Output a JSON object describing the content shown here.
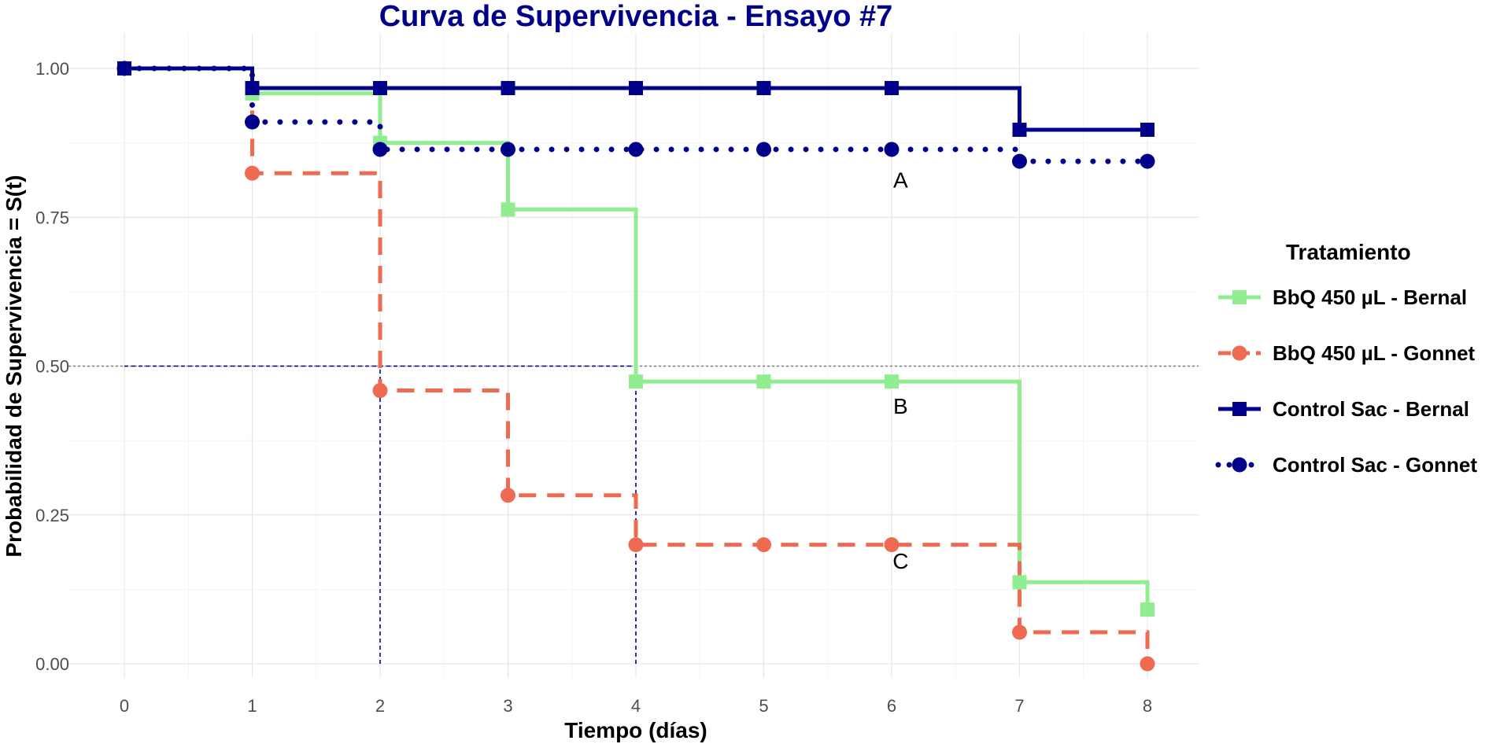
{
  "chart_data": {
    "type": "line",
    "subtype": "kaplan-meier-step",
    "title": "Curva de Supervivencia - Ensayo #7",
    "xlabel": "Tiempo (días)",
    "ylabel": "Probabilidad de Supervivencia = S(t)",
    "xlim": [
      0,
      8
    ],
    "ylim": [
      0,
      1
    ],
    "x_ticks": [
      "0",
      "1",
      "2",
      "3",
      "4",
      "5",
      "6",
      "7",
      "8"
    ],
    "y_ticks": [
      "0.00",
      "0.25",
      "0.50",
      "0.75",
      "1.00"
    ],
    "grid": true,
    "legend": {
      "title": "Tratamiento",
      "placement": "right"
    },
    "series": [
      {
        "name": "BbQ 450 µL - Bernal",
        "color": "#90EE90",
        "line_style": "solid",
        "marker": "square",
        "x": [
          0,
          1,
          2,
          3,
          4,
          5,
          6,
          7,
          8
        ],
        "y": [
          1.0,
          0.958,
          0.875,
          0.763,
          0.474,
          0.474,
          0.474,
          0.137,
          0.091
        ]
      },
      {
        "name": "BbQ 450 µL - Gonnet",
        "color": "#EE6A50",
        "line_style": "dashed",
        "marker": "circle",
        "x": [
          0,
          1,
          2,
          3,
          4,
          5,
          6,
          7,
          8
        ],
        "y": [
          1.0,
          0.824,
          0.459,
          0.283,
          0.2,
          0.2,
          0.2,
          0.053,
          0.0
        ]
      },
      {
        "name": "Control Sac - Bernal",
        "color": "#00008B",
        "line_style": "solid",
        "marker": "square",
        "x": [
          0,
          1,
          2,
          3,
          4,
          5,
          6,
          7,
          8
        ],
        "y": [
          1.0,
          0.967,
          0.967,
          0.967,
          0.967,
          0.967,
          0.967,
          0.897,
          0.897
        ]
      },
      {
        "name": "Control Sac - Gonnet",
        "color": "#00008B",
        "line_style": "dotted",
        "marker": "circle",
        "x": [
          0,
          1,
          2,
          3,
          4,
          5,
          6,
          7,
          8
        ],
        "y": [
          1.0,
          0.91,
          0.864,
          0.864,
          0.864,
          0.864,
          0.864,
          0.844,
          0.844
        ]
      }
    ],
    "reference_lines": [
      {
        "orientation": "horizontal",
        "value": 0.5,
        "color": "#808080",
        "style": "dotted"
      },
      {
        "orientation": "horizontal-segment",
        "value": 0.5,
        "x_from": 0,
        "x_to": 4,
        "color": "#00008B",
        "style": "dashed"
      },
      {
        "orientation": "vertical",
        "value": 2,
        "y_from": 0,
        "y_to": 0.5,
        "color": "#00008B",
        "style": "dashed"
      },
      {
        "orientation": "vertical",
        "value": 4,
        "y_from": 0,
        "y_to": 0.5,
        "color": "#00008B",
        "style": "dashed"
      }
    ],
    "annotations": [
      {
        "text": "A",
        "x": 6.07,
        "y": 0.8
      },
      {
        "text": "B",
        "x": 6.07,
        "y": 0.42
      },
      {
        "text": "C",
        "x": 6.07,
        "y": 0.16
      }
    ]
  }
}
